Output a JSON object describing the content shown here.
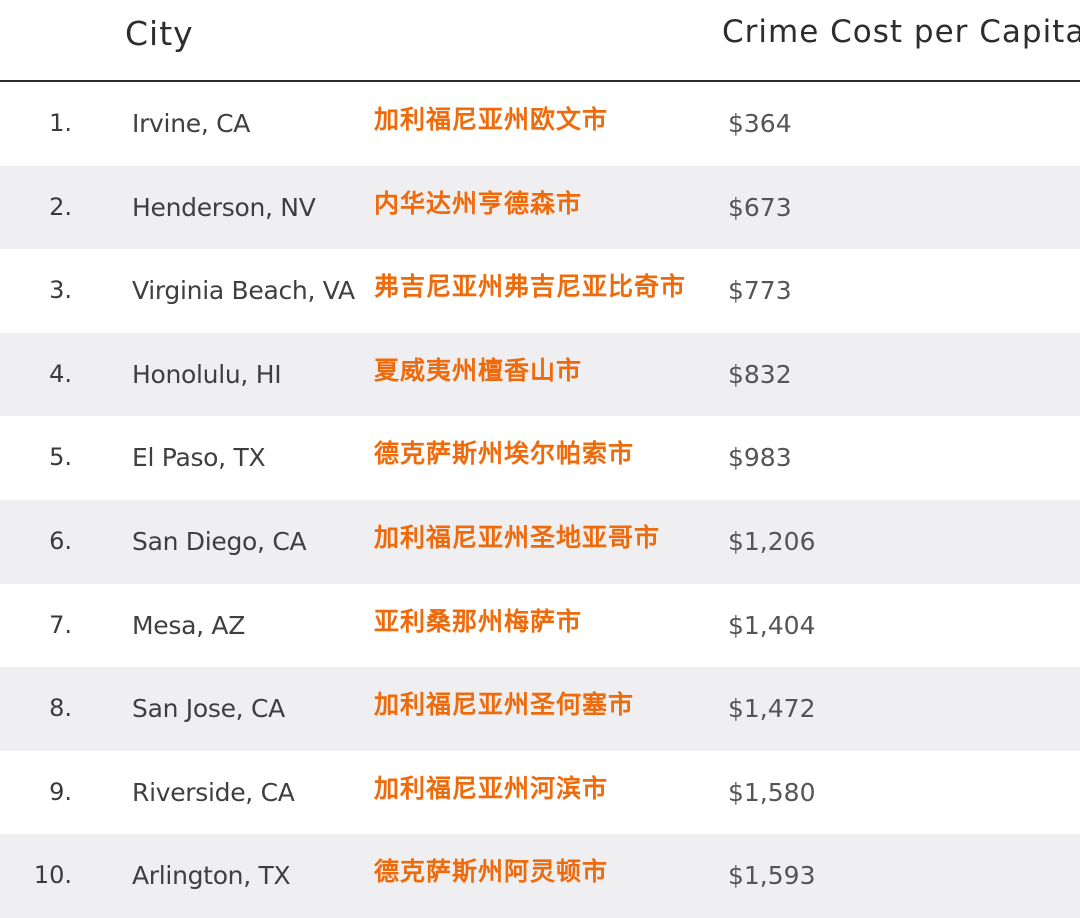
{
  "header": {
    "city_label": "City",
    "cost_label": "Crime Cost per Capita"
  },
  "rows": [
    {
      "rank": "1.",
      "city": "Irvine, CA",
      "chinese": "加利福尼亚州欧文市",
      "cost": "$364"
    },
    {
      "rank": "2.",
      "city": "Henderson, NV",
      "chinese": "内华达州亨德森市",
      "cost": "$673"
    },
    {
      "rank": "3.",
      "city": "Virginia Beach, VA",
      "chinese": "弗吉尼亚州弗吉尼亚比奇市",
      "cost": "$773"
    },
    {
      "rank": "4.",
      "city": "Honolulu, HI",
      "chinese": "夏威夷州檀香山市",
      "cost": "$832"
    },
    {
      "rank": "5.",
      "city": "El Paso, TX",
      "chinese": "德克萨斯州埃尔帕索市",
      "cost": "$983"
    },
    {
      "rank": "6.",
      "city": "San Diego, CA",
      "chinese": "加利福尼亚州圣地亚哥市",
      "cost": "$1,206"
    },
    {
      "rank": "7.",
      "city": "Mesa, AZ",
      "chinese": "亚利桑那州梅萨市",
      "cost": "$1,404"
    },
    {
      "rank": "8.",
      "city": "San Jose, CA",
      "chinese": "加利福尼亚州圣何塞市",
      "cost": "$1,472"
    },
    {
      "rank": "9.",
      "city": "Riverside, CA",
      "chinese": "加利福尼亚州河滨市",
      "cost": "$1,580"
    },
    {
      "rank": "10.",
      "city": "Arlington, TX",
      "chinese": "德克萨斯州阿灵顿市",
      "cost": "$1,593"
    }
  ]
}
